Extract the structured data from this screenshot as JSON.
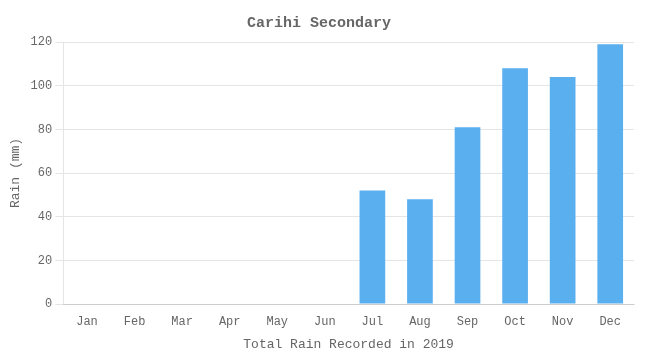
{
  "chart_data": {
    "type": "bar",
    "title": "Carihi Secondary",
    "xlabel": "Total Rain Recorded in 2019",
    "ylabel": "Rain (mm)",
    "categories": [
      "Jan",
      "Feb",
      "Mar",
      "Apr",
      "May",
      "Jun",
      "Jul",
      "Aug",
      "Sep",
      "Oct",
      "Nov",
      "Dec"
    ],
    "values": [
      0,
      0,
      0,
      0,
      0,
      0,
      52,
      48,
      81,
      108,
      104,
      119
    ],
    "color": "#5aafef",
    "ylim": [
      0,
      120
    ],
    "yticks": [
      0,
      20,
      40,
      60,
      80,
      100,
      120
    ],
    "grid": true
  }
}
